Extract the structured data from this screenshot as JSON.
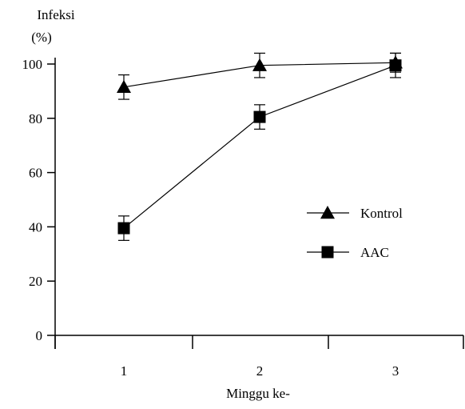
{
  "chart_data": {
    "type": "line",
    "ylabel": "Infeksi",
    "ylabel_unit": "(%)",
    "xlabel": "Minggu ke-",
    "ylim": [
      0,
      100
    ],
    "yticks": [
      0,
      20,
      40,
      60,
      80,
      100
    ],
    "categories": [
      "1",
      "2",
      "3"
    ],
    "legend_position": "right",
    "series": [
      {
        "name": "Kontrol",
        "marker": "triangle",
        "values": [
          91.5,
          99.5,
          100.5
        ],
        "error": [
          4.5,
          4.5,
          3.5
        ]
      },
      {
        "name": "AAC",
        "marker": "square",
        "values": [
          39.5,
          80.5,
          99.5
        ],
        "error": [
          4.5,
          4.5,
          4.5
        ]
      }
    ]
  }
}
